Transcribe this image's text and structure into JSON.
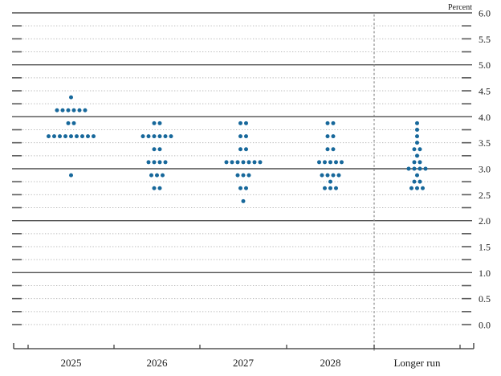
{
  "chart_data": {
    "type": "scatter",
    "unit_label": "Percent",
    "categories": [
      "2025",
      "2026",
      "2027",
      "2028",
      "Longer run"
    ],
    "ylim": [
      0.0,
      6.0
    ],
    "gridline_step": 0.25,
    "labeled_tick_step": 0.5,
    "ytick_labels": [
      "6.0",
      "5.5",
      "5.0",
      "4.5",
      "4.0",
      "3.5",
      "3.0",
      "2.5",
      "2.0",
      "1.5",
      "1.0",
      "0.5",
      "0.0"
    ],
    "solid_line_values": [
      6.0,
      5.0,
      4.0,
      3.0,
      2.0,
      1.0
    ],
    "grid": "dotted-quarters",
    "legend_position": "none",
    "separator": {
      "after_category": "2028",
      "style": "dashed-vertical"
    },
    "series": [
      {
        "category": "2025",
        "dots": [
          {
            "value": 4.375,
            "count": 1
          },
          {
            "value": 4.125,
            "count": 6
          },
          {
            "value": 3.875,
            "count": 2
          },
          {
            "value": 3.625,
            "count": 9
          },
          {
            "value": 2.875,
            "count": 1
          }
        ]
      },
      {
        "category": "2026",
        "dots": [
          {
            "value": 3.875,
            "count": 2
          },
          {
            "value": 3.625,
            "count": 6
          },
          {
            "value": 3.375,
            "count": 2
          },
          {
            "value": 3.125,
            "count": 4
          },
          {
            "value": 2.875,
            "count": 3
          },
          {
            "value": 2.625,
            "count": 2
          }
        ]
      },
      {
        "category": "2027",
        "dots": [
          {
            "value": 3.875,
            "count": 2
          },
          {
            "value": 3.625,
            "count": 2
          },
          {
            "value": 3.375,
            "count": 2
          },
          {
            "value": 3.125,
            "count": 7
          },
          {
            "value": 2.875,
            "count": 3
          },
          {
            "value": 2.625,
            "count": 2
          },
          {
            "value": 2.375,
            "count": 1
          }
        ]
      },
      {
        "category": "2028",
        "dots": [
          {
            "value": 3.875,
            "count": 2
          },
          {
            "value": 3.625,
            "count": 2
          },
          {
            "value": 3.375,
            "count": 2
          },
          {
            "value": 3.125,
            "count": 5
          },
          {
            "value": 2.875,
            "count": 4
          },
          {
            "value": 2.75,
            "count": 1
          },
          {
            "value": 2.625,
            "count": 3
          }
        ]
      },
      {
        "category": "Longer run",
        "dots": [
          {
            "value": 3.875,
            "count": 1
          },
          {
            "value": 3.75,
            "count": 1
          },
          {
            "value": 3.625,
            "count": 1
          },
          {
            "value": 3.5,
            "count": 1
          },
          {
            "value": 3.375,
            "count": 2
          },
          {
            "value": 3.25,
            "count": 1
          },
          {
            "value": 3.125,
            "count": 2
          },
          {
            "value": 3.0,
            "count": 4
          },
          {
            "value": 2.875,
            "count": 1
          },
          {
            "value": 2.75,
            "count": 2
          },
          {
            "value": 2.625,
            "count": 3
          }
        ]
      }
    ],
    "colors": {
      "dot": "#17689b",
      "solid_line": "#4f4f4f",
      "dotted_line": "#b8b8b8",
      "end_tick": "#5a5a5a",
      "axis": "#333333",
      "separator": "#8a8a8a",
      "label_text": "#1a1a1a"
    }
  }
}
